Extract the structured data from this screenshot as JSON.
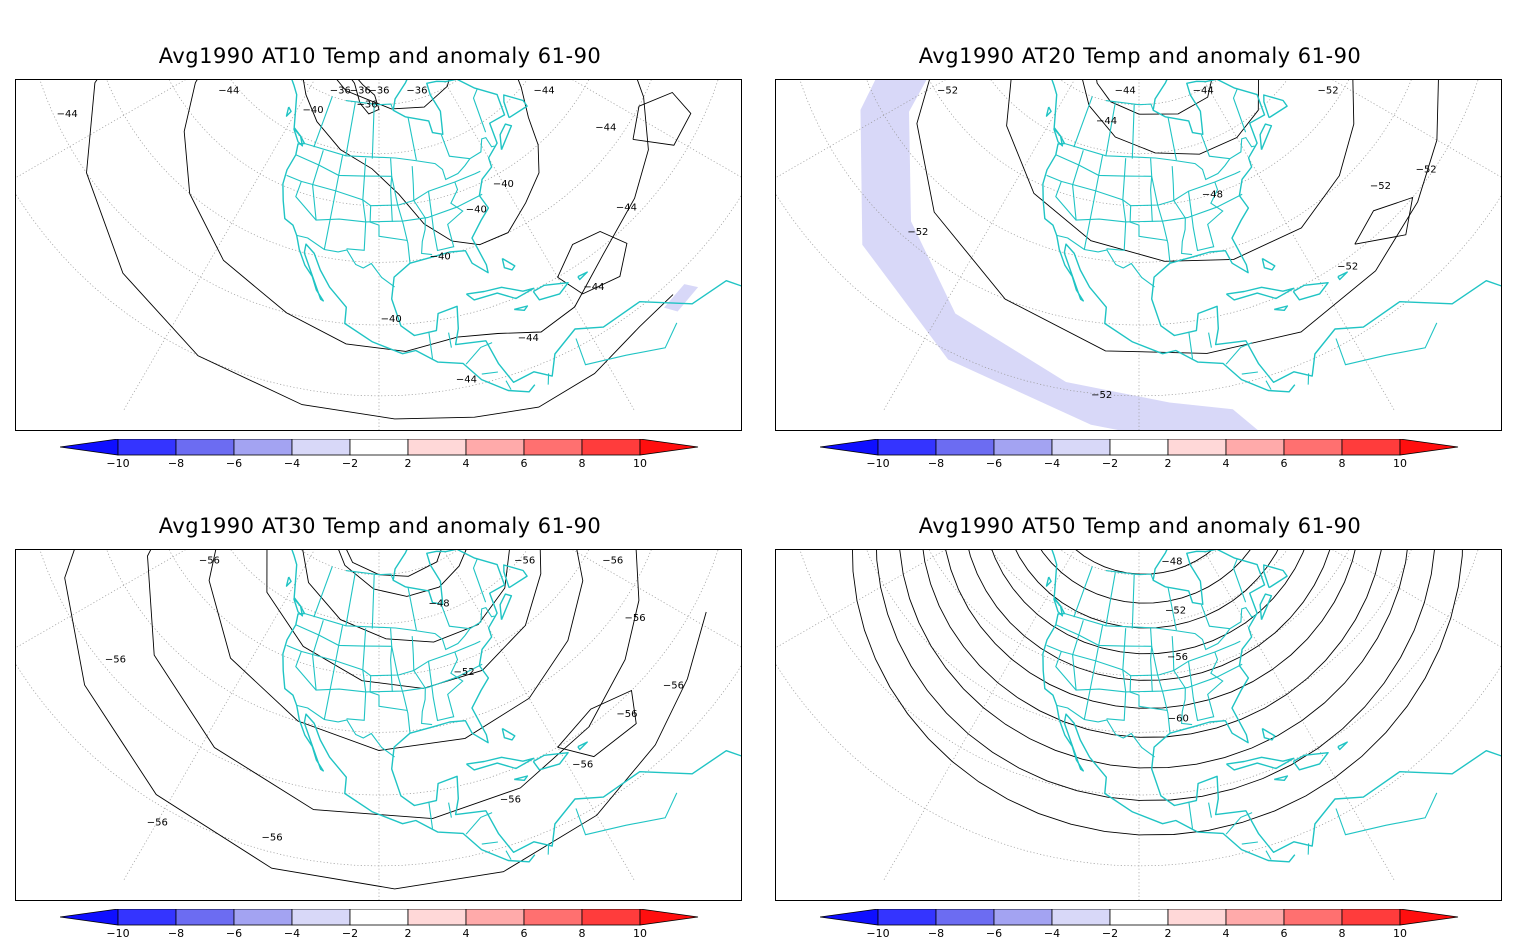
{
  "figure": {
    "panels": [
      {
        "id": "at10",
        "title": "Avg1990 AT10 Temp and anomaly 61-90",
        "contour_labels": [
          {
            "label": "-36",
            "lon": -112,
            "lat": 70
          },
          {
            "label": "-36",
            "lon": -100,
            "lat": 73
          },
          {
            "label": "-36",
            "lon": -72,
            "lat": 72
          },
          {
            "label": "-36",
            "lon": -120,
            "lat": 65
          },
          {
            "label": "-36",
            "lon": -105,
            "lat": 60
          },
          {
            "label": "-40",
            "lon": -125,
            "lat": 56
          },
          {
            "label": "-40",
            "lon": -70,
            "lat": 38
          },
          {
            "label": "-40",
            "lon": -78,
            "lat": 36
          },
          {
            "label": "-40",
            "lon": -88,
            "lat": 30
          },
          {
            "label": "-40",
            "lon": -98,
            "lat": 21
          },
          {
            "label": "-44",
            "lon": -165,
            "lat": 54
          },
          {
            "label": "-44",
            "lon": -165,
            "lat": 22
          },
          {
            "label": "-44",
            "lon": -30,
            "lat": 52
          },
          {
            "label": "-44",
            "lon": -45,
            "lat": 33
          },
          {
            "label": "-44",
            "lon": -54,
            "lat": 22
          },
          {
            "label": "-44",
            "lon": -66,
            "lat": 16
          },
          {
            "label": "-44",
            "lon": -78,
            "lat": 14
          },
          {
            "label": "-44",
            "lon": -88,
            "lat": 11
          }
        ]
      },
      {
        "id": "at20",
        "title": "Avg1990 AT20 Temp and anomaly 61-90",
        "contour_labels": [
          {
            "label": "-44",
            "lon": -108,
            "lat": 68
          },
          {
            "label": "-44",
            "lon": -72,
            "lat": 60
          },
          {
            "label": "-44",
            "lon": -112,
            "lat": 56
          },
          {
            "label": "-48",
            "lon": -82,
            "lat": 40
          },
          {
            "label": "-52",
            "lon": -165,
            "lat": 45
          },
          {
            "label": "-52",
            "lon": -140,
            "lat": 22
          },
          {
            "label": "-52",
            "lon": -105,
            "lat": 10
          },
          {
            "label": "-52",
            "lon": -25,
            "lat": 48
          },
          {
            "label": "-52",
            "lon": -52,
            "lat": 25
          },
          {
            "label": "-52",
            "lon": -65,
            "lat": 19
          },
          {
            "label": "-52",
            "lon": -45,
            "lat": 21
          }
        ]
      },
      {
        "id": "at30",
        "title": "Avg1990 AT30 Temp and anomaly 61-90",
        "contour_labels": [
          {
            "label": "-48",
            "lon": -80,
            "lat": 52
          },
          {
            "label": "-52",
            "lon": -80,
            "lat": 38
          },
          {
            "label": "-56",
            "lon": -175,
            "lat": 52
          },
          {
            "label": "-56",
            "lon": -150,
            "lat": 22
          },
          {
            "label": "-56",
            "lon": -115,
            "lat": 12
          },
          {
            "label": "-56",
            "lon": -130,
            "lat": 8
          },
          {
            "label": "-56",
            "lon": -35,
            "lat": 55
          },
          {
            "label": "-56",
            "lon": -30,
            "lat": 38
          },
          {
            "label": "-56",
            "lon": -45,
            "lat": 27
          },
          {
            "label": "-56",
            "lon": -58,
            "lat": 18
          },
          {
            "label": "-56",
            "lon": -68,
            "lat": 16
          },
          {
            "label": "-56",
            "lon": -80,
            "lat": 16
          },
          {
            "label": "-56",
            "lon": -50,
            "lat": 16
          }
        ]
      },
      {
        "id": "at50",
        "title": "Avg1990 AT50 Temp and anomaly 61-90",
        "contour_labels": [
          {
            "label": "-48",
            "lon": -85,
            "lat": 62
          },
          {
            "label": "-52",
            "lon": -88,
            "lat": 52
          },
          {
            "label": "-56",
            "lon": -90,
            "lat": 43
          },
          {
            "label": "-60",
            "lon": -92,
            "lat": 32
          }
        ]
      }
    ],
    "colorbar": {
      "tick_labels": [
        "-10",
        "-8",
        "-6",
        "-4",
        "-2",
        "2",
        "4",
        "6",
        "8",
        "10"
      ],
      "colors": [
        "#0f0fff",
        "#3434ff",
        "#6c6cf2",
        "#a3a3f2",
        "#d8d8f8",
        "#ffffff",
        "#ffd8d8",
        "#ffaaaa",
        "#ff7070",
        "#ff3c3c",
        "#ff0f0f"
      ]
    },
    "coastline_color": "#20c4c4",
    "contour_color": "#000000",
    "grid_color": "#999999"
  }
}
